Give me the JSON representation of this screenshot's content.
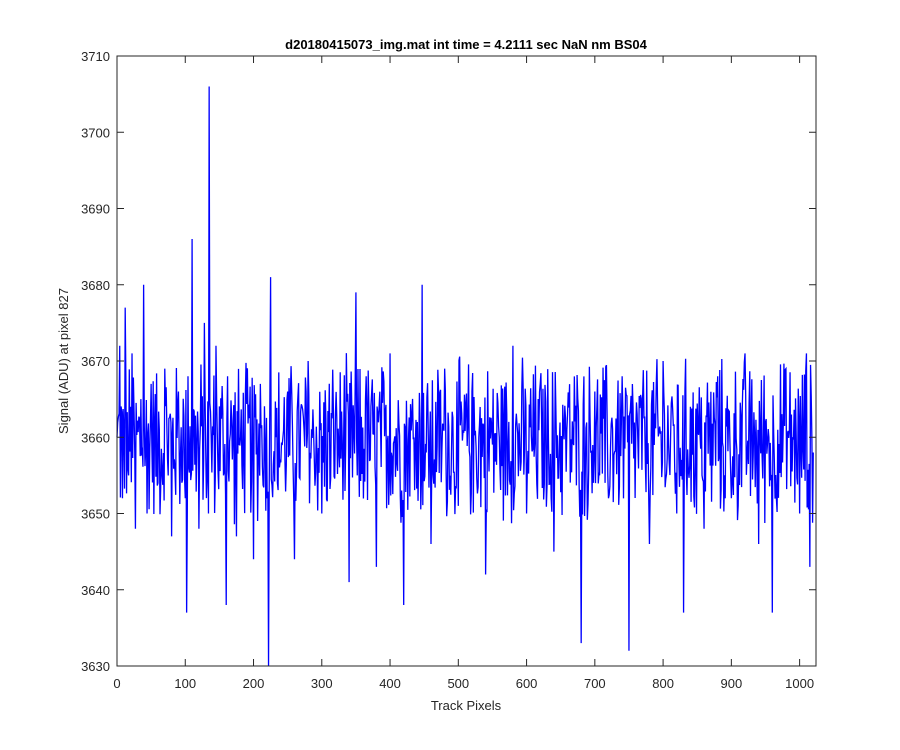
{
  "chart_data": {
    "type": "line",
    "title": "d20180415073_img.mat int time = 4.2111 sec  NaN nm BS04",
    "xlabel": "Track Pixels",
    "ylabel": "Signal (ADU) at pixel 827",
    "xlim": [
      0,
      1024
    ],
    "ylim": [
      3630,
      3710
    ],
    "xticks": [
      0,
      100,
      200,
      300,
      400,
      500,
      600,
      700,
      800,
      900,
      1000
    ],
    "yticks": [
      3630,
      3640,
      3650,
      3660,
      3670,
      3680,
      3690,
      3700,
      3710
    ],
    "grid": false,
    "legend": "none",
    "series_color": "#0000ff",
    "series": [
      {
        "name": "",
        "x": [
          0,
          4,
          8,
          12,
          17,
          22,
          27,
          35,
          39,
          44,
          50,
          60,
          70,
          80,
          90,
          100,
          102,
          104,
          110,
          120,
          128,
          134,
          135,
          138,
          145,
          160,
          162,
          175,
          180,
          200,
          210,
          220,
          222,
          225,
          235,
          250,
          260,
          280,
          300,
          320,
          340,
          350,
          352,
          365,
          380,
          400,
          420,
          440,
          447,
          460,
          480,
          500,
          520,
          540,
          560,
          580,
          600,
          620,
          640,
          660,
          680,
          700,
          720,
          740,
          750,
          760,
          780,
          800,
          820,
          830,
          840,
          860,
          880,
          900,
          920,
          940,
          950,
          960,
          980,
          1000,
          1010,
          1015,
          1020
        ],
        "values": [
          3660,
          3672,
          3652,
          3677,
          3655,
          3671,
          3648,
          3665,
          3680,
          3650,
          3667,
          3654,
          3669,
          3647,
          3666,
          3652,
          3637,
          3668,
          3686,
          3648,
          3675,
          3650,
          3706,
          3660,
          3672,
          3638,
          3668,
          3647,
          3659,
          3644,
          3667,
          3652,
          3630,
          3681,
          3654,
          3666,
          3644,
          3670,
          3650,
          3663,
          3641,
          3679,
          3655,
          3668,
          3643,
          3671,
          3638,
          3662,
          3680,
          3646,
          3669,
          3651,
          3666,
          3642,
          3660,
          3672,
          3650,
          3667,
          3645,
          3663,
          3633,
          3666,
          3652,
          3668,
          3632,
          3661,
          3646,
          3670,
          3650,
          3637,
          3664,
          3648,
          3668,
          3652,
          3671,
          3646,
          3662,
          3637,
          3669,
          3650,
          3671,
          3643,
          3658
        ]
      }
    ]
  }
}
